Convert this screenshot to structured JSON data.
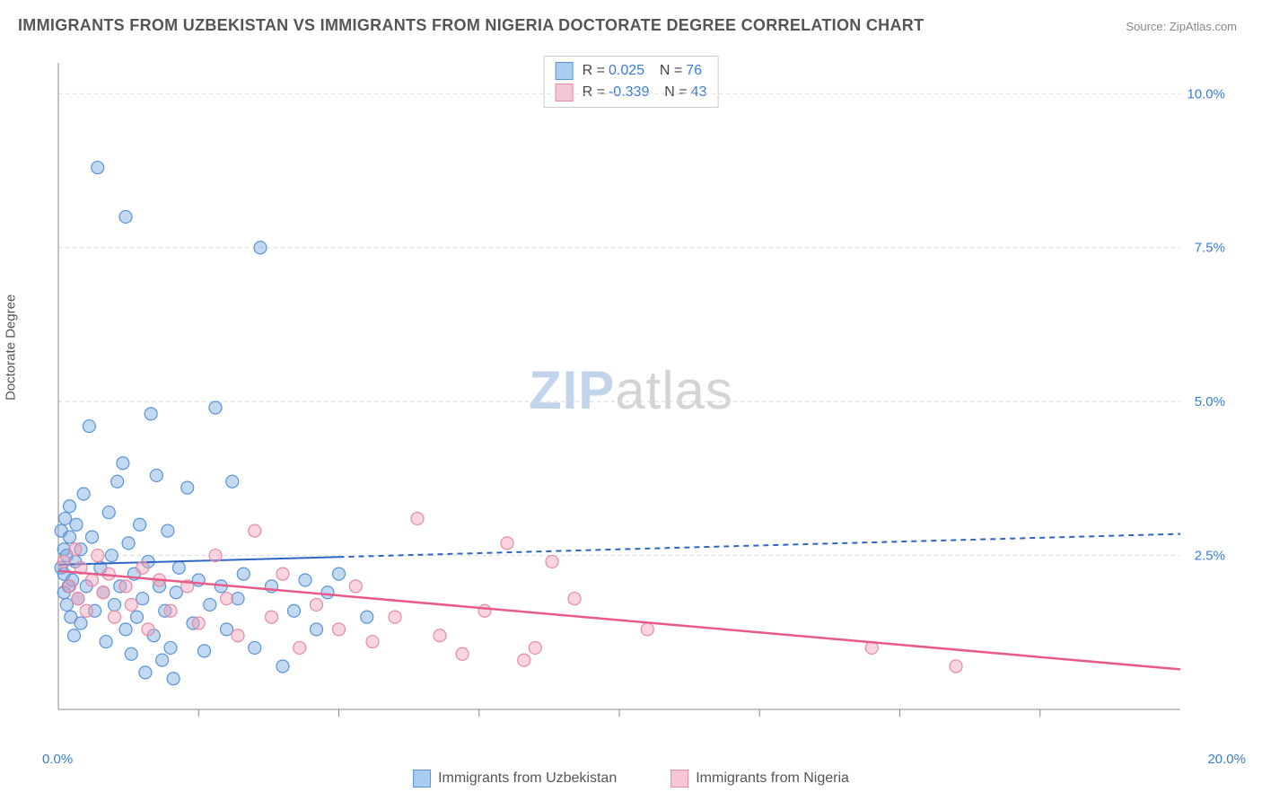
{
  "title": "IMMIGRANTS FROM UZBEKISTAN VS IMMIGRANTS FROM NIGERIA DOCTORATE DEGREE CORRELATION CHART",
  "source_label": "Source: ZipAtlas.com",
  "watermark": {
    "zip": "ZIP",
    "atlas": "atlas"
  },
  "y_axis_label": "Doctorate Degree",
  "chart": {
    "type": "scatter",
    "xlim": [
      0,
      20
    ],
    "ylim": [
      0,
      10.5
    ],
    "x_ticks": [
      0,
      20
    ],
    "x_tick_labels": [
      "0.0%",
      "20.0%"
    ],
    "x_minor_ticks": [
      2.5,
      5,
      7.5,
      10,
      12.5,
      15,
      17.5
    ],
    "y_ticks": [
      2.5,
      5.0,
      7.5,
      10.0
    ],
    "y_tick_labels": [
      "2.5%",
      "5.0%",
      "7.5%",
      "10.0%"
    ],
    "grid_color": "#d8d8d8",
    "axis_color": "#888888",
    "tick_label_color": "#3a7bd5",
    "background_color": "#ffffff",
    "marker_radius": 7,
    "marker_stroke_width": 1.2,
    "series": [
      {
        "name": "Immigrants from Uzbekistan",
        "fill": "rgba(120,170,225,0.45)",
        "stroke": "#5b94d6",
        "swatch_fill": "#a9cdf0",
        "swatch_border": "#5b94d6",
        "r_value": "0.025",
        "n_value": "76",
        "regression": {
          "x1": 0,
          "y1": 2.35,
          "x2": 20,
          "y2": 2.85,
          "solid_xmax": 5.0,
          "color": "#2e66c4",
          "width": 2,
          "dash": "6,5"
        },
        "points": [
          [
            0.05,
            2.3
          ],
          [
            0.05,
            2.9
          ],
          [
            0.1,
            1.9
          ],
          [
            0.1,
            2.2
          ],
          [
            0.1,
            2.6
          ],
          [
            0.12,
            3.1
          ],
          [
            0.15,
            1.7
          ],
          [
            0.15,
            2.5
          ],
          [
            0.18,
            2.0
          ],
          [
            0.2,
            2.8
          ],
          [
            0.2,
            3.3
          ],
          [
            0.22,
            1.5
          ],
          [
            0.25,
            2.1
          ],
          [
            0.28,
            1.2
          ],
          [
            0.3,
            2.4
          ],
          [
            0.32,
            3.0
          ],
          [
            0.35,
            1.8
          ],
          [
            0.4,
            2.6
          ],
          [
            0.4,
            1.4
          ],
          [
            0.45,
            3.5
          ],
          [
            0.5,
            2.0
          ],
          [
            0.55,
            4.6
          ],
          [
            0.6,
            2.8
          ],
          [
            0.65,
            1.6
          ],
          [
            0.7,
            8.8
          ],
          [
            0.75,
            2.3
          ],
          [
            0.8,
            1.9
          ],
          [
            0.85,
            1.1
          ],
          [
            0.9,
            3.2
          ],
          [
            0.95,
            2.5
          ],
          [
            1.0,
            1.7
          ],
          [
            1.05,
            3.7
          ],
          [
            1.1,
            2.0
          ],
          [
            1.15,
            4.0
          ],
          [
            1.2,
            1.3
          ],
          [
            1.2,
            8.0
          ],
          [
            1.25,
            2.7
          ],
          [
            1.3,
            0.9
          ],
          [
            1.35,
            2.2
          ],
          [
            1.4,
            1.5
          ],
          [
            1.45,
            3.0
          ],
          [
            1.5,
            1.8
          ],
          [
            1.55,
            0.6
          ],
          [
            1.6,
            2.4
          ],
          [
            1.65,
            4.8
          ],
          [
            1.7,
            1.2
          ],
          [
            1.75,
            3.8
          ],
          [
            1.8,
            2.0
          ],
          [
            1.85,
            0.8
          ],
          [
            1.9,
            1.6
          ],
          [
            1.95,
            2.9
          ],
          [
            2.0,
            1.0
          ],
          [
            2.05,
            0.5
          ],
          [
            2.1,
            1.9
          ],
          [
            2.15,
            2.3
          ],
          [
            2.3,
            3.6
          ],
          [
            2.4,
            1.4
          ],
          [
            2.5,
            2.1
          ],
          [
            2.6,
            0.95
          ],
          [
            2.7,
            1.7
          ],
          [
            2.8,
            4.9
          ],
          [
            2.9,
            2.0
          ],
          [
            3.0,
            1.3
          ],
          [
            3.1,
            3.7
          ],
          [
            3.2,
            1.8
          ],
          [
            3.3,
            2.2
          ],
          [
            3.5,
            1.0
          ],
          [
            3.6,
            7.5
          ],
          [
            3.8,
            2.0
          ],
          [
            4.0,
            0.7
          ],
          [
            4.2,
            1.6
          ],
          [
            4.4,
            2.1
          ],
          [
            4.6,
            1.3
          ],
          [
            4.8,
            1.9
          ],
          [
            5.0,
            2.2
          ],
          [
            5.5,
            1.5
          ]
        ]
      },
      {
        "name": "Immigrants from Nigeria",
        "fill": "rgba(244,160,185,0.45)",
        "stroke": "#e68aa6",
        "swatch_fill": "#f6c6d5",
        "swatch_border": "#e68aa6",
        "r_value": "-0.339",
        "n_value": "43",
        "regression": {
          "x1": 0,
          "y1": 2.25,
          "x2": 20,
          "y2": 0.65,
          "solid_xmax": 20,
          "color": "#e85a8a",
          "width": 2.5,
          "dash": "none"
        },
        "points": [
          [
            0.1,
            2.4
          ],
          [
            0.2,
            2.0
          ],
          [
            0.3,
            2.6
          ],
          [
            0.35,
            1.8
          ],
          [
            0.4,
            2.3
          ],
          [
            0.5,
            1.6
          ],
          [
            0.6,
            2.1
          ],
          [
            0.7,
            2.5
          ],
          [
            0.8,
            1.9
          ],
          [
            0.9,
            2.2
          ],
          [
            1.0,
            1.5
          ],
          [
            1.2,
            2.0
          ],
          [
            1.3,
            1.7
          ],
          [
            1.5,
            2.3
          ],
          [
            1.6,
            1.3
          ],
          [
            1.8,
            2.1
          ],
          [
            2.0,
            1.6
          ],
          [
            2.3,
            2.0
          ],
          [
            2.5,
            1.4
          ],
          [
            2.8,
            2.5
          ],
          [
            3.0,
            1.8
          ],
          [
            3.2,
            1.2
          ],
          [
            3.5,
            2.9
          ],
          [
            3.8,
            1.5
          ],
          [
            4.0,
            2.2
          ],
          [
            4.3,
            1.0
          ],
          [
            4.6,
            1.7
          ],
          [
            5.0,
            1.3
          ],
          [
            5.3,
            2.0
          ],
          [
            5.6,
            1.1
          ],
          [
            6.0,
            1.5
          ],
          [
            6.4,
            3.1
          ],
          [
            6.8,
            1.2
          ],
          [
            7.2,
            0.9
          ],
          [
            7.6,
            1.6
          ],
          [
            8.0,
            2.7
          ],
          [
            8.5,
            1.0
          ],
          [
            8.8,
            2.4
          ],
          [
            9.2,
            1.8
          ],
          [
            10.5,
            1.3
          ],
          [
            14.5,
            1.0
          ],
          [
            16.0,
            0.7
          ],
          [
            8.3,
            0.8
          ]
        ]
      }
    ]
  },
  "legend_box_labels": {
    "r": "R  =",
    "n": "N  ="
  },
  "bottom_legend": [
    "Immigrants from Uzbekistan",
    "Immigrants from Nigeria"
  ]
}
